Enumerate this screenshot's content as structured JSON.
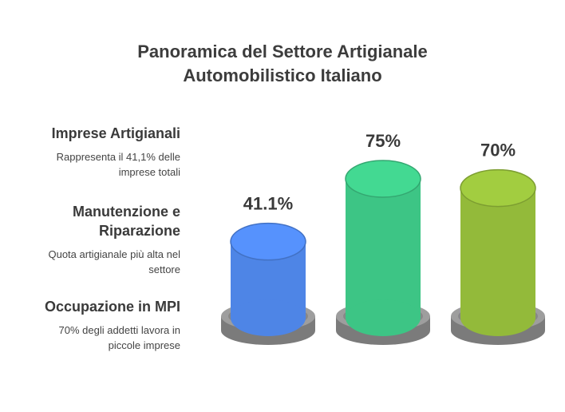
{
  "title_line1": "Panoramica del Settore Artigianale",
  "title_line2": "Automobilistico Italiano",
  "legend": [
    {
      "title": "Imprese Artigianali",
      "desc_lines": [
        "Rappresenta il 41,1% delle",
        "imprese totali"
      ]
    },
    {
      "title_lines": [
        "Manutenzione e",
        "Riparazione"
      ],
      "desc_lines": [
        "Quota artigianale più alta nel",
        "settore"
      ]
    },
    {
      "title": "Occupazione in MPI",
      "desc_lines": [
        "70% degli addetti lavora in",
        "piccole imprese"
      ]
    }
  ],
  "chart_data": {
    "type": "bar",
    "categories": [
      "Imprese Artigianali",
      "Manutenzione e Riparazione",
      "Occupazione in MPI"
    ],
    "values": [
      41.1,
      75,
      70
    ],
    "labels": [
      "41.1%",
      "75%",
      "70%"
    ],
    "colors": [
      "#4e85e6",
      "#3dc585",
      "#93ba3a"
    ],
    "base_color": "#9e9e9e",
    "ylim": [
      0,
      100
    ]
  }
}
